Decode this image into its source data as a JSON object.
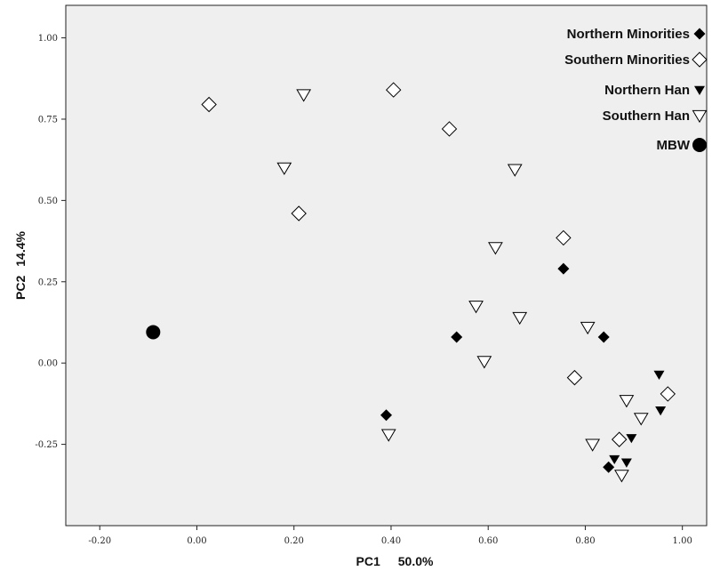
{
  "chart_data": {
    "type": "scatter",
    "xlabel": "PC1",
    "xlabel_pct": "50.0%",
    "ylabel": "PC2",
    "ylabel_pct": "14.4%",
    "xlim": [
      -0.27,
      1.05
    ],
    "ylim": [
      -0.5,
      1.1
    ],
    "xticks": [
      -0.2,
      0.0,
      0.2,
      0.4,
      0.6,
      0.8,
      1.0
    ],
    "xtick_labels": [
      "-0.20",
      "0.00",
      "0.20",
      "0.40",
      "0.60",
      "0.80",
      "1.00"
    ],
    "yticks": [
      -0.25,
      0.0,
      0.25,
      0.5,
      0.75,
      1.0
    ],
    "ytick_labels": [
      "-0.25",
      "0.00",
      "0.25",
      "0.50",
      "0.75",
      "1.00"
    ],
    "grid": false,
    "legend_position": "top-right",
    "series": [
      {
        "name": "Northern Minorities",
        "marker": "diamond-filled",
        "color": "#000000",
        "points": [
          {
            "x": 0.755,
            "y": 0.29
          },
          {
            "x": 0.535,
            "y": 0.08
          },
          {
            "x": 0.838,
            "y": 0.08
          },
          {
            "x": 0.39,
            "y": -0.16
          },
          {
            "x": 0.848,
            "y": -0.32
          }
        ]
      },
      {
        "name": "Southern Minorities",
        "marker": "diamond-open",
        "color": "#000000",
        "points": [
          {
            "x": 0.025,
            "y": 0.795
          },
          {
            "x": 0.405,
            "y": 0.84
          },
          {
            "x": 0.52,
            "y": 0.72
          },
          {
            "x": 0.21,
            "y": 0.46
          },
          {
            "x": 0.755,
            "y": 0.385
          },
          {
            "x": 0.778,
            "y": -0.045
          },
          {
            "x": 0.97,
            "y": -0.095
          },
          {
            "x": 0.87,
            "y": -0.235
          }
        ]
      },
      {
        "name": "Northern Han",
        "marker": "triangle-down-filled",
        "color": "#000000",
        "points": [
          {
            "x": 0.952,
            "y": -0.035
          },
          {
            "x": 0.955,
            "y": -0.145
          },
          {
            "x": 0.895,
            "y": -0.23
          },
          {
            "x": 0.86,
            "y": -0.295
          },
          {
            "x": 0.885,
            "y": -0.305
          }
        ]
      },
      {
        "name": "Southern Han",
        "marker": "triangle-down-open",
        "color": "#000000",
        "points": [
          {
            "x": 0.22,
            "y": 0.825
          },
          {
            "x": 0.18,
            "y": 0.6
          },
          {
            "x": 0.655,
            "y": 0.595
          },
          {
            "x": 0.615,
            "y": 0.355
          },
          {
            "x": 0.575,
            "y": 0.175
          },
          {
            "x": 0.665,
            "y": 0.14
          },
          {
            "x": 0.805,
            "y": 0.11
          },
          {
            "x": 0.592,
            "y": 0.005
          },
          {
            "x": 0.885,
            "y": -0.115
          },
          {
            "x": 0.915,
            "y": -0.17
          },
          {
            "x": 0.815,
            "y": -0.25
          },
          {
            "x": 0.395,
            "y": -0.22
          },
          {
            "x": 0.875,
            "y": -0.345
          }
        ]
      },
      {
        "name": "MBW",
        "marker": "circle-filled",
        "color": "#000000",
        "points": [
          {
            "x": -0.09,
            "y": 0.095
          }
        ]
      }
    ]
  },
  "colors": {
    "plot_background": "#efefef",
    "axis": "#222222",
    "marker": "#000000"
  }
}
